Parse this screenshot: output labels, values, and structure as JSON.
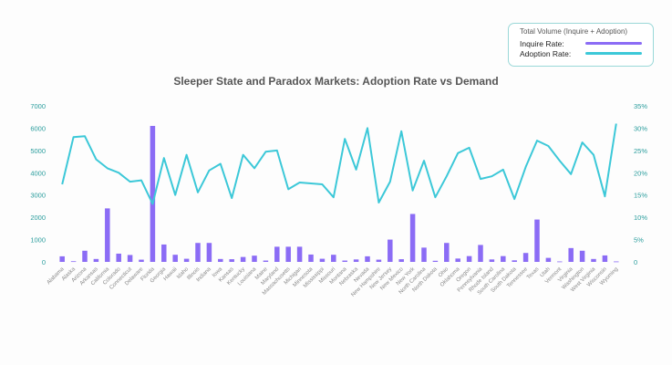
{
  "legend": {
    "title": "Total Volume (Inquire + Adoption)",
    "inquire_label": "Inquire Rate:",
    "adoption_label": "Adoption Rate:"
  },
  "colors": {
    "bar": "#8b6cf5",
    "line": "#3cc8d8",
    "grid": "#d46ee8",
    "tick": "#2a9d9d"
  },
  "chart_data": {
    "type": "bar+line",
    "title": "Sleeper State and Paradox Markets: Adoption Rate vs Demand",
    "xlabel": "",
    "ylabel_left": "",
    "ylabel_right": "",
    "ylim_left": [
      0,
      7000
    ],
    "ylim_right": [
      0,
      35
    ],
    "yticks_left": [
      "0",
      "1000",
      "2000",
      "3000",
      "4000",
      "5000",
      "6000",
      "7000"
    ],
    "yticks_right": [
      "0",
      "5%",
      "10%",
      "15%",
      "20%",
      "25%",
      "30%",
      "35%"
    ],
    "grid": true,
    "legend_position": "top-right",
    "categories": [
      "Alabama",
      "Alaska",
      "Arizona",
      "Arkansas",
      "California",
      "Colorado",
      "Connecticut",
      "Delaware",
      "Florida",
      "Georgia",
      "Hawaii",
      "Idaho",
      "Illinois",
      "Indiana",
      "Iowa",
      "Kansas",
      "Kentucky",
      "Louisiana",
      "Maine",
      "Maryland",
      "Massachusetts",
      "Michigan",
      "Minnesota",
      "Mississippi",
      "Missouri",
      "Montana",
      "Nebraska",
      "Nevada",
      "New Hampshire",
      "New Jersey",
      "New Mexico",
      "New York",
      "North Carolina",
      "North Dakota",
      "Ohio",
      "Oklahoma",
      "Oregon",
      "Pennsylvania",
      "Rhode Island",
      "South Carolina",
      "South Dakota",
      "Tennessee",
      "Texas",
      "Utah",
      "Vermont",
      "Virginia",
      "Washington",
      "West Virginia",
      "Wisconsin",
      "Wyoming"
    ],
    "series": [
      {
        "name": "Inquire Rate",
        "type": "bar",
        "axis": "left",
        "values": [
          250,
          30,
          500,
          130,
          2400,
          370,
          310,
          100,
          6100,
          780,
          320,
          140,
          850,
          850,
          130,
          120,
          220,
          280,
          60,
          680,
          680,
          680,
          330,
          140,
          320,
          60,
          110,
          250,
          100,
          1000,
          120,
          2150,
          640,
          50,
          850,
          150,
          260,
          760,
          110,
          260,
          70,
          400,
          1900,
          180,
          20,
          620,
          500,
          130,
          290,
          20
        ]
      },
      {
        "name": "Adoption Rate",
        "type": "line",
        "axis": "right",
        "values": [
          17.4,
          28.0,
          28.2,
          23.0,
          21.0,
          20.0,
          18.0,
          18.3,
          13.0,
          23.3,
          15.0,
          24.0,
          15.6,
          20.5,
          22.0,
          14.3,
          24.0,
          21.0,
          24.7,
          25.0,
          16.3,
          17.8,
          17.6,
          17.4,
          14.5,
          27.6,
          20.7,
          30.0,
          13.3,
          18.0,
          29.3,
          16.0,
          22.7,
          14.5,
          19.2,
          24.4,
          25.6,
          18.6,
          19.2,
          20.7,
          14.1,
          21.3,
          27.2,
          26.0,
          22.7,
          19.7,
          26.8,
          24.0,
          14.7,
          31.0
        ]
      }
    ]
  }
}
